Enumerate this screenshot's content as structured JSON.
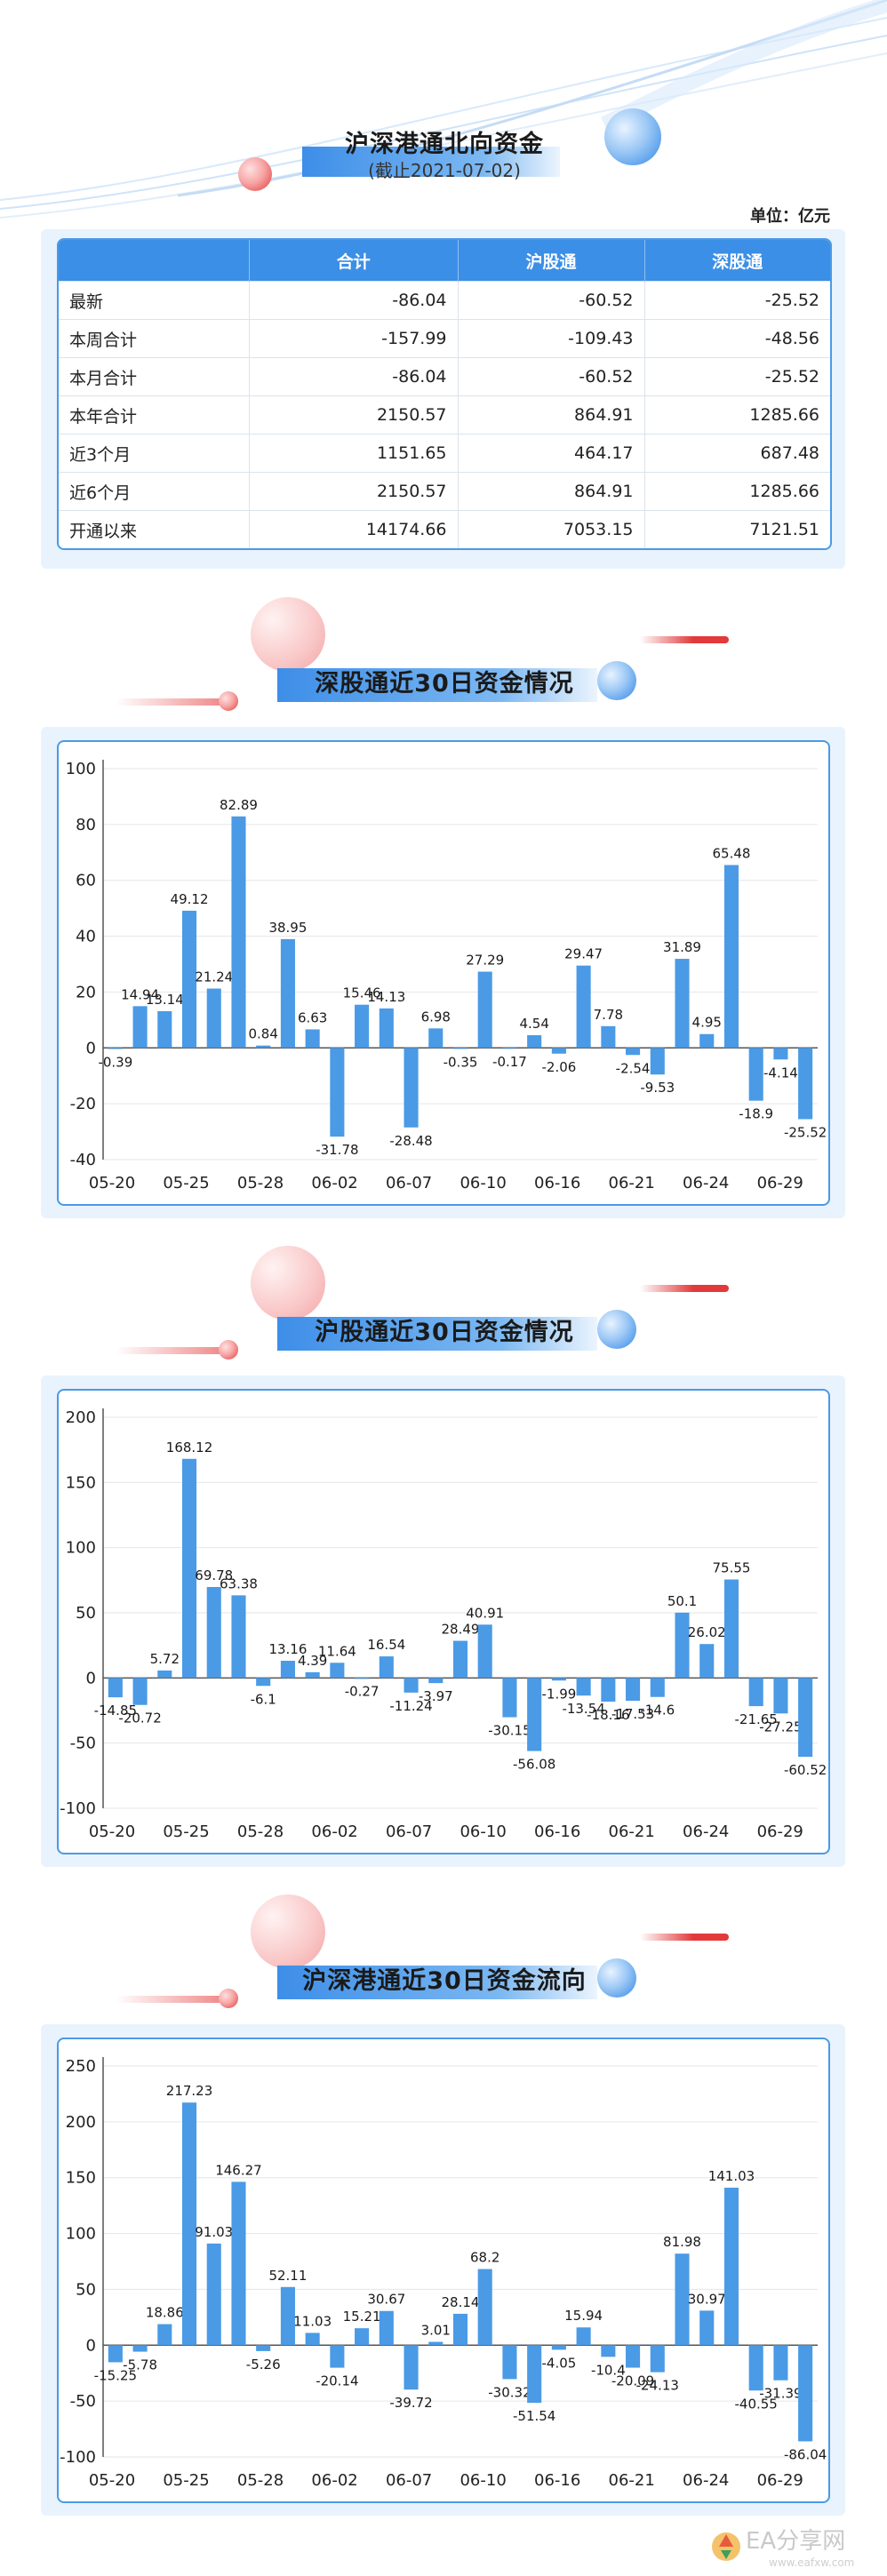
{
  "header": {
    "title": "沪深港通北向资金",
    "subtitle": "(截止2021-07-02)",
    "unit": "单位：亿元"
  },
  "table": {
    "columns": [
      "",
      "合计",
      "沪股通",
      "深股通"
    ],
    "rows": [
      {
        "label": "最新",
        "total": "-86.04",
        "sh": "-60.52",
        "sz": "-25.52"
      },
      {
        "label": "本周合计",
        "total": "-157.99",
        "sh": "-109.43",
        "sz": "-48.56"
      },
      {
        "label": "本月合计",
        "total": "-86.04",
        "sh": "-60.52",
        "sz": "-25.52"
      },
      {
        "label": "本年合计",
        "total": "2150.57",
        "sh": "864.91",
        "sz": "1285.66"
      },
      {
        "label": "近3个月",
        "total": "1151.65",
        "sh": "464.17",
        "sz": "687.48"
      },
      {
        "label": "近6个月",
        "total": "2150.57",
        "sh": "864.91",
        "sz": "1285.66"
      },
      {
        "label": "开通以来",
        "total": "14174.66",
        "sh": "7053.15",
        "sz": "7121.51"
      }
    ]
  },
  "charts": {
    "sz": {
      "title": "深股通近30日资金情况"
    },
    "sh": {
      "title": "沪股通近30日资金情况"
    },
    "total": {
      "title": "沪深港通近30日资金流向"
    }
  },
  "watermark": {
    "text": "EA分享网",
    "url": "www.eafxw.com"
  },
  "colors": {
    "bar": "#4a9ae6",
    "accent_red": "#e23a3a",
    "accent_blue": "#3b8fe6"
  },
  "chart_data": [
    {
      "type": "bar",
      "title": "深股通近30日资金情况",
      "ylim": [
        -40,
        100
      ],
      "yticks": [
        -40,
        -20,
        0,
        20,
        40,
        60,
        80,
        100
      ],
      "xticklabels": [
        "05-20",
        "05-25",
        "05-28",
        "06-02",
        "06-07",
        "06-10",
        "06-16",
        "06-21",
        "06-24",
        "06-29"
      ],
      "values": [
        -0.39,
        14.94,
        13.14,
        49.12,
        21.24,
        82.89,
        0.84,
        38.95,
        6.63,
        -31.78,
        15.46,
        14.13,
        -28.48,
        6.98,
        -0.35,
        27.29,
        -0.17,
        4.54,
        -2.06,
        29.47,
        7.78,
        -2.54,
        -9.53,
        31.89,
        4.95,
        65.48,
        -18.9,
        -4.14,
        -25.52
      ],
      "labels": [
        "-0.39",
        "14.94",
        "13.14",
        "49.12",
        "21.24",
        "82.89",
        "0.84",
        "38.95",
        "6.63",
        "-31.78",
        "15.46",
        "14.13",
        "-28.48",
        "6.98",
        "-0.35",
        "27.29",
        "-0.17",
        "4.54",
        "-2.06",
        "29.47",
        "7.78",
        "-2.54",
        "-9.53",
        "31.89",
        "4.95",
        "65.48",
        "-18.9",
        "-4.14",
        "-25.52"
      ],
      "grid": true
    },
    {
      "type": "bar",
      "title": "沪股通近30日资金情况",
      "ylim": [
        -100,
        200
      ],
      "yticks": [
        -100,
        -50,
        0,
        50,
        100,
        150,
        200
      ],
      "xticklabels": [
        "05-20",
        "05-25",
        "05-28",
        "06-02",
        "06-07",
        "06-10",
        "06-16",
        "06-21",
        "06-24",
        "06-29"
      ],
      "values": [
        -14.85,
        -20.72,
        5.72,
        168.12,
        69.78,
        63.38,
        -6.1,
        13.16,
        4.39,
        11.64,
        -0.27,
        16.54,
        -11.24,
        -3.97,
        28.49,
        40.91,
        -30.15,
        -56.08,
        -1.99,
        -13.54,
        -18.16,
        -17.53,
        -14.6,
        50.1,
        26.02,
        75.55,
        -21.65,
        -27.25,
        -60.52
      ],
      "labels": [
        "-14.85",
        "-20.72",
        "5.72",
        "168.12",
        "69.78",
        "63.38",
        "-6.1",
        "13.16",
        "4.39",
        "11.64",
        "-0.27",
        "16.54",
        "-11.24",
        "-3.97",
        "28.49",
        "40.91",
        "-30.15",
        "-56.08",
        "-1.99",
        "-13.54",
        "-18.16",
        "-17.53",
        "-14.6",
        "50.1",
        "26.02",
        "75.55",
        "-21.65",
        "-27.25",
        "-60.52"
      ],
      "grid": true
    },
    {
      "type": "bar",
      "title": "沪深港通近30日资金流向",
      "ylim": [
        -100,
        250
      ],
      "yticks": [
        -100,
        -50,
        0,
        50,
        100,
        150,
        200,
        250
      ],
      "xticklabels": [
        "05-20",
        "05-25",
        "05-28",
        "06-02",
        "06-07",
        "06-10",
        "06-16",
        "06-21",
        "06-24",
        "06-29"
      ],
      "values": [
        -15.25,
        -5.78,
        18.86,
        217.23,
        91.03,
        146.27,
        -5.26,
        52.11,
        11.03,
        -20.14,
        15.21,
        30.67,
        -39.72,
        3.01,
        28.14,
        68.2,
        -30.32,
        -51.54,
        -4.05,
        15.94,
        -10.4,
        -20.09,
        -24.13,
        81.98,
        30.97,
        141.03,
        -40.55,
        -31.39,
        -86.04
      ],
      "labels": [
        "-15.25",
        "-5.78",
        "18.86",
        "217.23",
        "91.03",
        "146.27",
        "-5.26",
        "52.11",
        "11.03",
        "-20.14",
        "15.21",
        "30.67",
        "-39.72",
        "3.01",
        "28.14",
        "68.2",
        "-30.32",
        "-51.54",
        "-4.05",
        "15.94",
        "-10.4",
        "-20.09",
        "-24.13",
        "81.98",
        "30.97",
        "141.03",
        "-40.55",
        "-31.39",
        "-86.04"
      ],
      "grid": true
    }
  ]
}
